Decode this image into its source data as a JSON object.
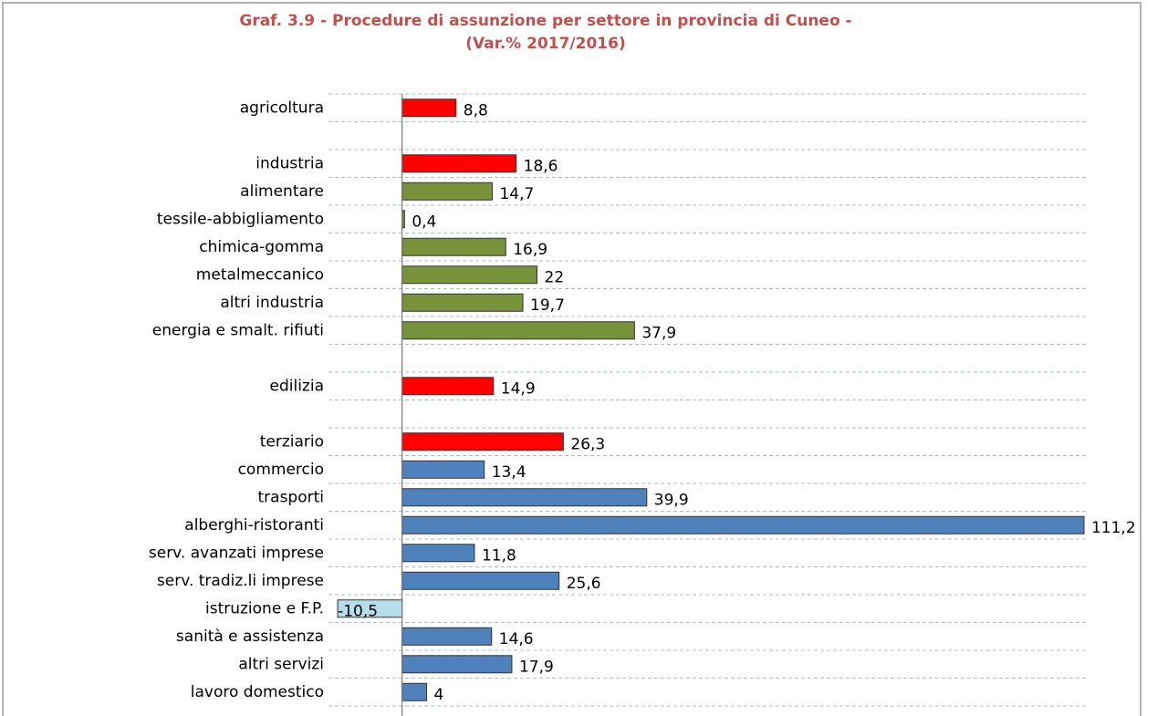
{
  "chart_data": {
    "type": "hbar",
    "title": [
      "Graf. 3.9 - Procedure di assunzione per settore in provincia di Cuneo -",
      "(Var.% 2017/2016)"
    ],
    "categories": [
      "agricoltura",
      null,
      "industria",
      "alimentare",
      "tessile-abbigliamento",
      "chimica-gomma",
      "metalmeccanico",
      "altri industria",
      "energia e smalt. rifiuti",
      null,
      "edilizia",
      null,
      "terziario",
      "commercio",
      "trasporti",
      "alberghi-ristoranti",
      "serv. avanzati imprese",
      "serv. tradiz.li imprese",
      "istruzione e F.P.",
      "sanità e assistenza",
      "altri servizi",
      "lavoro domestico"
    ],
    "values": [
      8.8,
      null,
      18.6,
      14.7,
      0.4,
      16.9,
      22,
      19.7,
      37.9,
      null,
      14.9,
      null,
      26.3,
      13.4,
      39.9,
      111.2,
      11.8,
      25.6,
      -10.5,
      14.6,
      17.9,
      4
    ],
    "value_labels": [
      "8,8",
      null,
      "18,6",
      "14,7",
      "0,4",
      "16,9",
      "22",
      "19,7",
      "37,9",
      null,
      "14,9",
      null,
      "26,3",
      "13,4",
      "39,9",
      "111,2",
      "11,8",
      "25,6",
      "-10,5",
      "14,6",
      "17,9",
      "4"
    ],
    "colors": [
      "#ff0000",
      null,
      "#ff0000",
      "#77933c",
      "#77933c",
      "#77933c",
      "#77933c",
      "#77933c",
      "#77933c",
      null,
      "#ff0000",
      null,
      "#ff0000",
      "#4f81bd",
      "#4f81bd",
      "#4f81bd",
      "#4f81bd",
      "#4f81bd",
      "#b7dee8",
      "#4f81bd",
      "#4f81bd",
      "#4f81bd"
    ],
    "xlim": [
      -12,
      111.5
    ],
    "grid": true
  }
}
